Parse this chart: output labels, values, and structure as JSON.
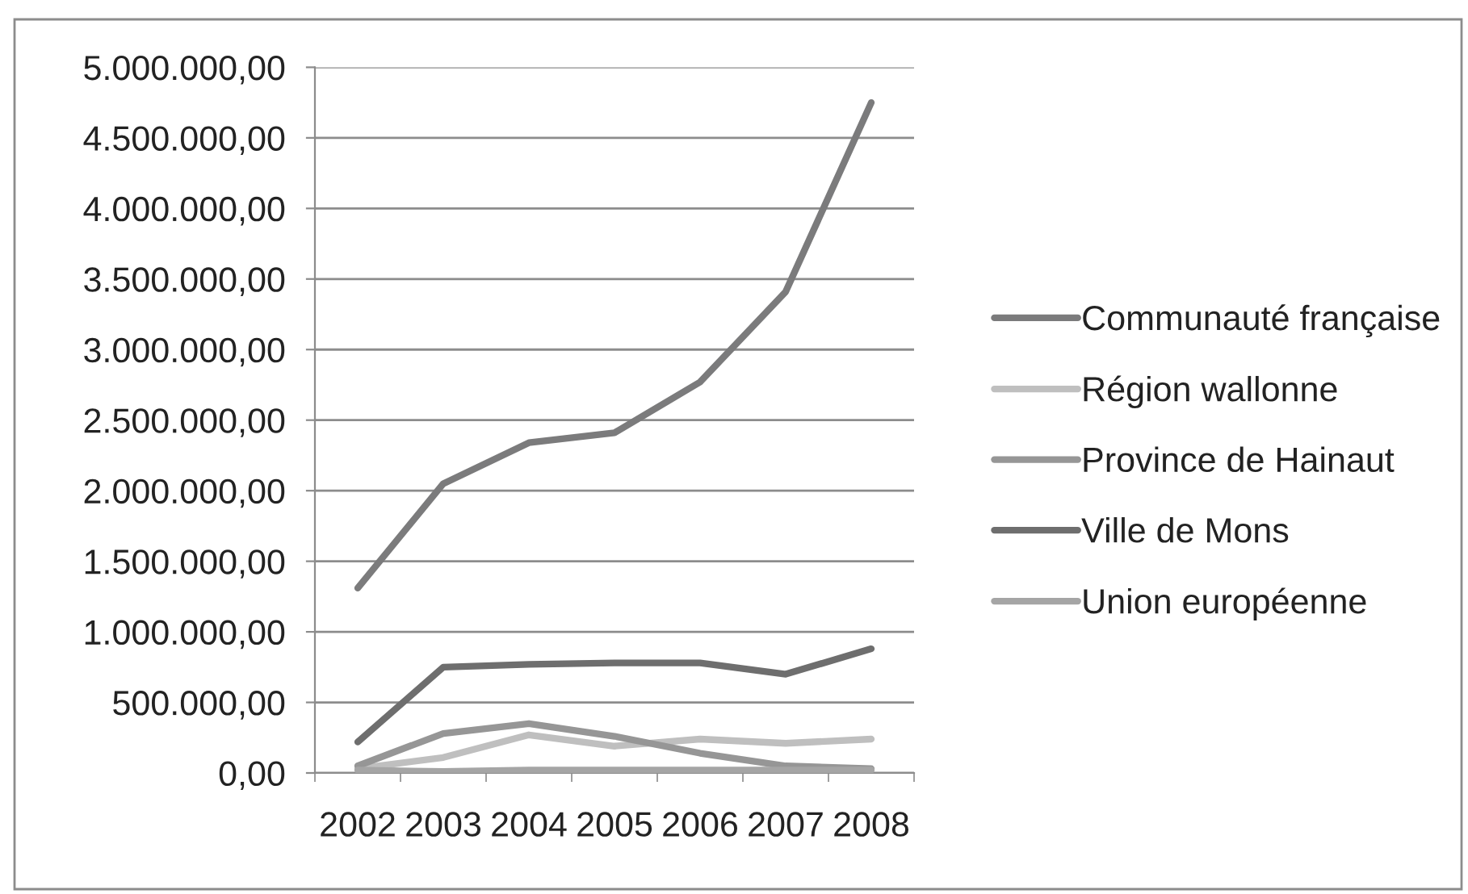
{
  "chart_data": {
    "type": "line",
    "categories": [
      "2002",
      "2003",
      "2004",
      "2005",
      "2006",
      "2007",
      "2008"
    ],
    "series": [
      {
        "name": "Communauté française",
        "color": "#7b7b7c",
        "values": [
          1310000,
          2050000,
          2340000,
          2410000,
          2770000,
          3410000,
          4750000
        ]
      },
      {
        "name": "Région wallonne",
        "color": "#bfbfbf",
        "values": [
          30000,
          110000,
          270000,
          190000,
          240000,
          210000,
          240000
        ]
      },
      {
        "name": "Province de Hainaut",
        "color": "#969696",
        "values": [
          50000,
          280000,
          350000,
          260000,
          140000,
          50000,
          30000
        ]
      },
      {
        "name": "Ville de Mons",
        "color": "#6e6e6e",
        "values": [
          220000,
          750000,
          770000,
          780000,
          780000,
          700000,
          880000
        ]
      },
      {
        "name": "Union européenne",
        "color": "#a5a5a5",
        "values": [
          20000,
          10000,
          20000,
          20000,
          20000,
          20000,
          20000
        ]
      }
    ],
    "ylim": [
      0,
      5000000
    ],
    "yticks": [
      {
        "value": 0,
        "label": "0,00"
      },
      {
        "value": 500000,
        "label": "500.000,00"
      },
      {
        "value": 1000000,
        "label": "1.000.000,00"
      },
      {
        "value": 1500000,
        "label": "1.500.000,00"
      },
      {
        "value": 2000000,
        "label": "2.000.000,00"
      },
      {
        "value": 2500000,
        "label": "2.500.000,00"
      },
      {
        "value": 3000000,
        "label": "3.000.000,00"
      },
      {
        "value": 3500000,
        "label": "3.500.000,00"
      },
      {
        "value": 4000000,
        "label": "4.000.000,00"
      },
      {
        "value": 4500000,
        "label": "4.500.000,00"
      },
      {
        "value": 5000000,
        "label": "5.000.000,00"
      }
    ],
    "grid": "y",
    "legend": "right",
    "marker": "none",
    "line_style": "solid"
  }
}
